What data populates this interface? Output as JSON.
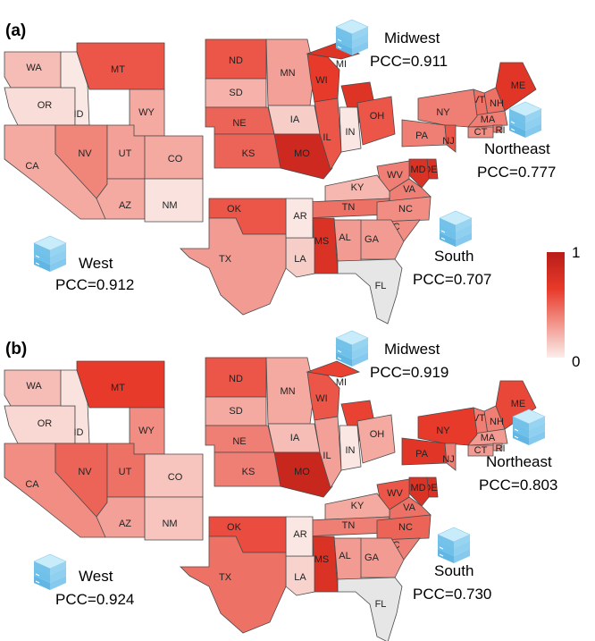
{
  "panels": [
    {
      "letter": "(a)",
      "regions": [
        {
          "id": "midwest",
          "name": "Midwest",
          "pcc": "PCC=0.911"
        },
        {
          "id": "northeast",
          "name": "Northeast",
          "pcc": "PCC=0.777"
        },
        {
          "id": "south",
          "name": "South",
          "pcc": "PCC=0.707"
        },
        {
          "id": "west",
          "name": "West",
          "pcc": "PCC=0.912"
        }
      ],
      "states": {
        "WA": 0.18,
        "OR": 0.06,
        "ID": 0.02,
        "MT": 0.55,
        "WY": 0.25,
        "CA": 0.25,
        "NV": 0.38,
        "UT": 0.28,
        "CO": 0.25,
        "AZ": 0.25,
        "NM": 0.04,
        "ND": 0.55,
        "SD": 0.22,
        "NE": 0.5,
        "KS": 0.5,
        "MN": 0.28,
        "IA": 0.12,
        "MO": 0.85,
        "WI": 0.65,
        "IL": 0.55,
        "MI": 0.72,
        "IN": 0.03,
        "OH": 0.55,
        "ME": 0.7,
        "NH": 0.45,
        "VT": 0.45,
        "MA": 0.4,
        "RI": 0.4,
        "CT": 0.35,
        "NY": 0.4,
        "PA": 0.4,
        "NJ": 0.55,
        "DE": 0.75,
        "MD": 0.75,
        "WV": 0.4,
        "VA": 0.4,
        "KY": 0.2,
        "TN": 0.45,
        "NC": 0.35,
        "SC": 0.35,
        "GA": 0.3,
        "AL": 0.3,
        "FL": null,
        "MS": 0.75,
        "LA": 0.12,
        "AR": 0.03,
        "OK": 0.55,
        "TX": 0.3
      }
    },
    {
      "letter": "(b)",
      "regions": [
        {
          "id": "midwest",
          "name": "Midwest",
          "pcc": "PCC=0.919"
        },
        {
          "id": "northeast",
          "name": "Northeast",
          "pcc": "PCC=0.803"
        },
        {
          "id": "south",
          "name": "South",
          "pcc": "PCC=0.730"
        },
        {
          "id": "west",
          "name": "West",
          "pcc": "PCC=0.924"
        }
      ],
      "states": {
        "WA": 0.18,
        "OR": 0.08,
        "ID": 0.04,
        "MT": 0.65,
        "WY": 0.35,
        "CA": 0.35,
        "NV": 0.5,
        "UT": 0.45,
        "CO": 0.15,
        "AZ": 0.28,
        "NM": 0.15,
        "ND": 0.55,
        "SD": 0.25,
        "NE": 0.4,
        "KS": 0.4,
        "MN": 0.25,
        "IA": 0.18,
        "MO": 0.88,
        "WI": 0.55,
        "IL": 0.28,
        "MI": 0.62,
        "IN": 0.03,
        "OH": 0.25,
        "ME": 0.6,
        "NH": 0.4,
        "VT": 0.4,
        "MA": 0.3,
        "RI": 0.3,
        "CT": 0.3,
        "NY": 0.65,
        "PA": 0.7,
        "NJ": 0.4,
        "DE": 0.75,
        "MD": 0.75,
        "WV": 0.55,
        "VA": 0.45,
        "KY": 0.25,
        "TN": 0.4,
        "NC": 0.5,
        "SC": 0.4,
        "GA": 0.3,
        "AL": 0.3,
        "FL": null,
        "MS": 0.75,
        "LA": 0.1,
        "AR": 0.03,
        "OK": 0.58,
        "TX": 0.45
      }
    }
  ],
  "colorbar": {
    "max_label": "1",
    "min_label": "0",
    "colors": [
      "#fbeeeb",
      "#e83a2a",
      "#b81d18"
    ]
  },
  "missing_color": "#e6e6e6",
  "icon": "database-icon"
}
